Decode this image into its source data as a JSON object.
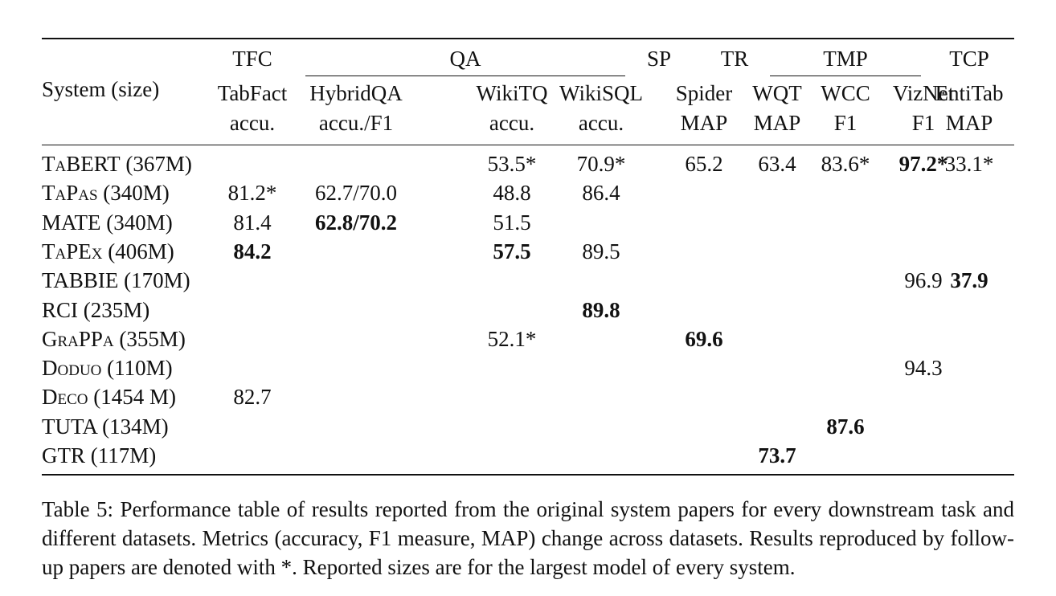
{
  "table": {
    "header_system": "System (size)",
    "groups": [
      "TFC",
      "QA",
      "SP",
      "TR",
      "TMP",
      "TCP"
    ],
    "columns": [
      {
        "name": "TabFact",
        "metric": "accu."
      },
      {
        "name": "HybridQA",
        "metric": "accu./F1"
      },
      {
        "name": "WikiTQ",
        "metric": "accu."
      },
      {
        "name": "WikiSQL",
        "metric": "accu."
      },
      {
        "name": "Spider",
        "metric": "MAP"
      },
      {
        "name": "WQT",
        "metric": "MAP"
      },
      {
        "name": "WCC",
        "metric": "F1"
      },
      {
        "name": "VizNet",
        "metric": "F1"
      },
      {
        "name": "EntiTab",
        "metric": "MAP"
      }
    ],
    "rows": [
      {
        "system": "TaBERT (367M)",
        "cells": [
          "",
          "",
          "53.5*",
          "70.9*",
          "65.2",
          "63.4",
          "83.6*",
          "97.2*",
          "33.1*"
        ]
      },
      {
        "system": "TaPas (340M)",
        "cells": [
          "81.2*",
          "62.7/70.0",
          "48.8",
          "86.4",
          "",
          "",
          "",
          "",
          ""
        ]
      },
      {
        "system": "MATE (340M)",
        "cells": [
          "81.4",
          "62.8/70.2",
          "51.5",
          "",
          "",
          "",
          "",
          "",
          ""
        ]
      },
      {
        "system": "TaPEx (406M)",
        "cells": [
          "84.2",
          "",
          "57.5",
          "89.5",
          "",
          "",
          "",
          "",
          ""
        ]
      },
      {
        "system": "TABBIE (170M)",
        "cells": [
          "",
          "",
          "",
          "",
          "",
          "",
          "",
          "96.9",
          "37.9"
        ]
      },
      {
        "system": "RCI (235M)",
        "cells": [
          "",
          "",
          "",
          "89.8",
          "",
          "",
          "",
          "",
          ""
        ]
      },
      {
        "system": "GraPPa (355M)",
        "cells": [
          "",
          "",
          "52.1*",
          "",
          "69.6",
          "",
          "",
          "",
          ""
        ]
      },
      {
        "system": "Doduo (110M)",
        "cells": [
          "",
          "",
          "",
          "",
          "",
          "",
          "",
          "94.3",
          ""
        ]
      },
      {
        "system": "Deco (1454 M)",
        "cells": [
          "82.7",
          "",
          "",
          "",
          "",
          "",
          "",
          "",
          ""
        ]
      },
      {
        "system": "TUTA (134M)",
        "cells": [
          "",
          "",
          "",
          "",
          "",
          "",
          "87.6",
          "",
          ""
        ]
      },
      {
        "system": "GTR (117M)",
        "cells": [
          "",
          "",
          "",
          "",
          "",
          "73.7",
          "",
          "",
          ""
        ]
      }
    ],
    "bold_cells": [
      "0-7",
      "2-1",
      "3-0",
      "3-2",
      "4-8",
      "5-3",
      "6-4",
      "9-6",
      "10-5"
    ]
  },
  "caption": "Table 5: Performance table of results reported from the original system papers for every downstream task and different datasets. Metrics (accuracy, F1 measure, MAP) change across datasets. Results reproduced by follow-up papers are denoted with *. Reported sizes are for the largest model of every system."
}
